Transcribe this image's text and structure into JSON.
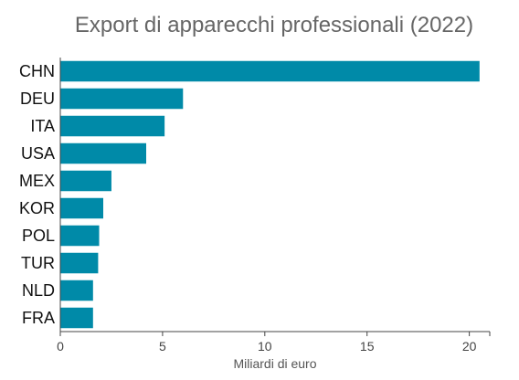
{
  "chart_data": {
    "type": "bar",
    "orientation": "horizontal",
    "title": "Export di apparecchi professionali (2022)",
    "xlabel": "Miliardi di euro",
    "ylabel": "",
    "categories": [
      "CHN",
      "DEU",
      "ITA",
      "USA",
      "MEX",
      "KOR",
      "POL",
      "TUR",
      "NLD",
      "FRA"
    ],
    "values": [
      20.5,
      6.0,
      5.1,
      4.2,
      2.5,
      2.1,
      1.9,
      1.85,
      1.6,
      1.6
    ],
    "xlim": [
      0,
      21
    ],
    "xticks": [
      0,
      5,
      10,
      15,
      20
    ],
    "bar_color": "#008aa8",
    "grid": false,
    "legend": "none"
  }
}
